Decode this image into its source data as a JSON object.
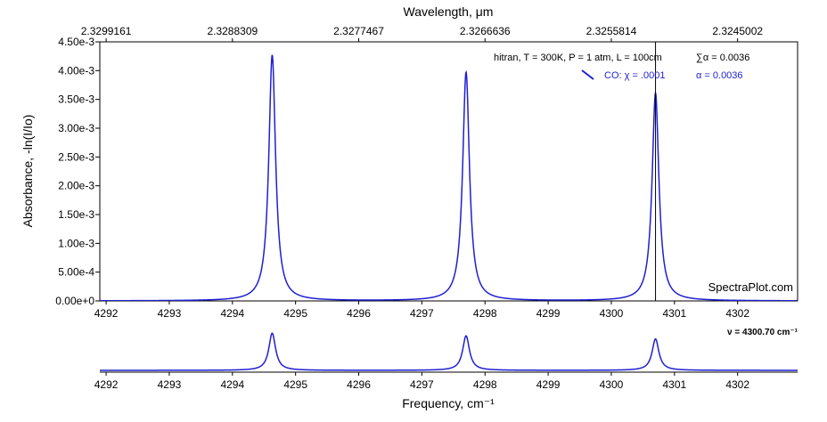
{
  "chart_data": {
    "type": "line",
    "top_axis": {
      "title": "Wavelength, μm",
      "tick_labels": [
        "2.3299161",
        "2.3288309",
        "2.3277467",
        "2.3266636",
        "2.3255814",
        "2.3245002"
      ],
      "tick_frequencies": [
        4292,
        4294,
        4296,
        4298,
        4300,
        4302
      ]
    },
    "main_plot": {
      "ylabel": "Absorbance, -ln(I/Io)",
      "xlim": [
        4291.9,
        4302.95
      ],
      "ylim": [
        0,
        0.0045
      ],
      "y_ticks": [
        0,
        0.0005,
        0.001,
        0.0015,
        0.002,
        0.0025,
        0.003,
        0.0035,
        0.004,
        0.0045
      ],
      "y_tick_labels": [
        "0.00e+0",
        "5.00e-4",
        "1.00e-3",
        "1.50e-3",
        "2.00e-3",
        "2.50e-3",
        "3.00e-3",
        "3.50e-3",
        "4.00e-3",
        "4.50e-3"
      ],
      "x_ticks": [
        4292,
        4293,
        4294,
        4295,
        4296,
        4297,
        4298,
        4299,
        4300,
        4301,
        4302
      ],
      "x_tick_labels": [
        "4292",
        "4293",
        "4294",
        "4295",
        "4296",
        "4297",
        "4298",
        "4299",
        "4300",
        "4301",
        "4302"
      ],
      "cursor_frequency": 4300.7
    },
    "overview_plot": {
      "xlabel": "Frequency, cm⁻¹",
      "x_ticks": [
        4292,
        4293,
        4294,
        4295,
        4296,
        4297,
        4298,
        4299,
        4300,
        4301,
        4302
      ],
      "x_tick_labels": [
        "4292",
        "4293",
        "4294",
        "4295",
        "4296",
        "4297",
        "4298",
        "4299",
        "4300",
        "4301",
        "4302"
      ],
      "cursor_readout": "ν = 4300.70 cm⁻¹"
    },
    "series": [
      {
        "name": "CO: χ = .0001",
        "color": "#1f1fd2",
        "peaks": [
          {
            "center": 4294.63,
            "height": 0.00427
          },
          {
            "center": 4297.7,
            "height": 0.00397
          },
          {
            "center": 4300.7,
            "height": 0.00361
          }
        ],
        "half_width": 0.065,
        "left_edge_value": 0.00012
      }
    ],
    "info": {
      "conditions": "hitran, T = 300K, P = 1 atm, L = 100cm",
      "sum_alpha": "∑α = 0.0036",
      "series_label": "CO: χ = .0001",
      "series_alpha": "α = 0.0036"
    },
    "watermark": "SpectraPlot.com"
  }
}
